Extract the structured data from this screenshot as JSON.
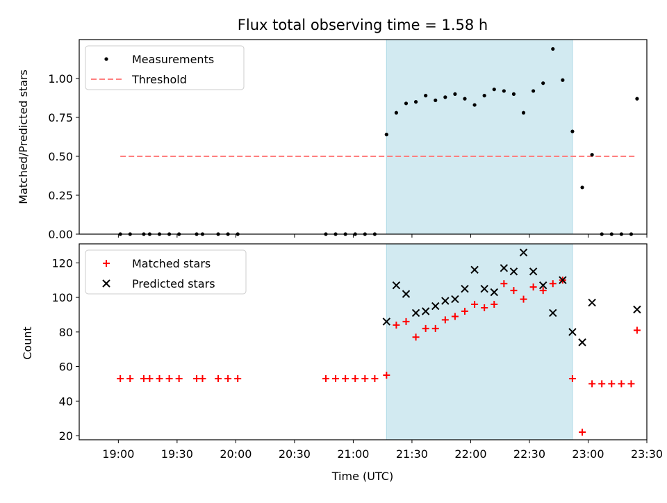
{
  "title": "Flux total observing time = 1.58 h",
  "xlabel": "Time (UTC)",
  "x_ticks": [
    "19:00",
    "19:30",
    "20:00",
    "20:30",
    "21:00",
    "21:30",
    "22:00",
    "22:30",
    "23:00",
    "23:30"
  ],
  "colors": {
    "shade": "#add8e6",
    "threshold": "#ff7f7f",
    "matched": "#ff0000",
    "predicted": "#000000",
    "measure": "#000000"
  },
  "chart_data": [
    {
      "type": "scatter",
      "ylabel": "Matched/Predicted stars",
      "ylim": [
        0,
        1.25
      ],
      "y_ticks": [
        "0.00",
        "0.25",
        "0.50",
        "0.75",
        "1.00"
      ],
      "legend": {
        "position": "top-left",
        "entries": [
          "Measurements",
          "Threshold"
        ]
      },
      "shaded_span_minutes": [
        137,
        232
      ],
      "threshold": {
        "value": 0.5,
        "x_range_minutes": [
          1,
          265
        ]
      },
      "series": [
        {
          "name": "Measurements",
          "x_minutes": [
            1,
            6,
            13,
            16,
            21,
            26,
            31,
            40,
            43,
            51,
            56,
            61,
            106,
            111,
            116,
            121,
            126,
            131,
            137,
            142,
            147,
            152,
            157,
            162,
            167,
            172,
            177,
            182,
            187,
            192,
            197,
            202,
            207,
            212,
            217,
            222,
            227,
            232,
            237,
            242,
            247,
            252,
            257,
            262,
            265
          ],
          "y": [
            0,
            0,
            0,
            0,
            0,
            0,
            0,
            0,
            0,
            0,
            0,
            0,
            0,
            0,
            0,
            0,
            0,
            0,
            0.64,
            0.78,
            0.84,
            0.85,
            0.89,
            0.86,
            0.88,
            0.9,
            0.87,
            0.83,
            0.89,
            0.93,
            0.92,
            0.9,
            0.78,
            0.92,
            0.97,
            1.19,
            0.99,
            0.66,
            0.3,
            0.51,
            0,
            0,
            0,
            0,
            0.87
          ]
        }
      ]
    },
    {
      "type": "scatter",
      "ylabel": "Count",
      "ylim": [
        17.6,
        131
      ],
      "y_ticks": [
        "20",
        "40",
        "60",
        "80",
        "100",
        "120"
      ],
      "legend": {
        "position": "top-left",
        "entries": [
          "Matched stars",
          "Predicted stars"
        ]
      },
      "shaded_span_minutes": [
        137,
        232
      ],
      "series": [
        {
          "name": "Matched stars",
          "x_minutes": [
            1,
            6,
            13,
            16,
            21,
            26,
            31,
            40,
            43,
            51,
            56,
            61,
            106,
            111,
            116,
            121,
            126,
            131,
            137,
            142,
            147,
            152,
            157,
            162,
            167,
            172,
            177,
            182,
            187,
            192,
            197,
            202,
            207,
            212,
            217,
            222,
            227,
            232,
            237,
            242,
            247,
            252,
            257,
            262,
            265
          ],
          "y": [
            53,
            53,
            53,
            53,
            53,
            53,
            53,
            53,
            53,
            53,
            53,
            53,
            53,
            53,
            53,
            53,
            53,
            53,
            55,
            84,
            86,
            77,
            82,
            82,
            87,
            89,
            92,
            96,
            94,
            96,
            108,
            104,
            99,
            106,
            104,
            108,
            110,
            53,
            22,
            50,
            50,
            50,
            50,
            50,
            81
          ]
        },
        {
          "name": "Predicted stars",
          "x_minutes": [
            137,
            142,
            147,
            152,
            157,
            162,
            167,
            172,
            177,
            182,
            187,
            192,
            197,
            202,
            207,
            212,
            217,
            222,
            227,
            232,
            237,
            242,
            265
          ],
          "y": [
            86,
            107,
            102,
            91,
            92,
            95,
            98,
            99,
            105,
            116,
            105,
            103,
            117,
            115,
            126,
            115,
            107,
            91,
            110,
            80,
            74,
            97,
            93
          ]
        }
      ]
    }
  ]
}
